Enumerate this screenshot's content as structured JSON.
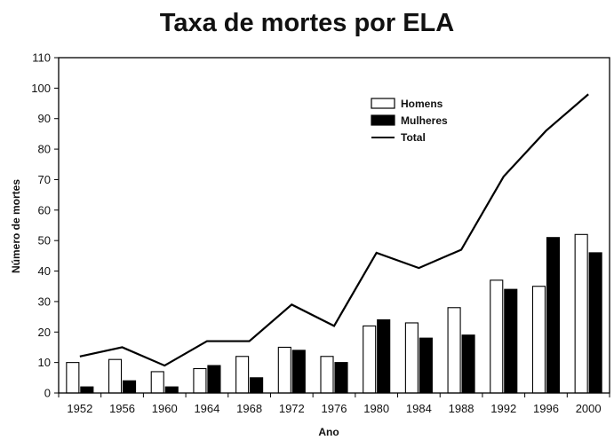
{
  "chart_data": {
    "type": "bar",
    "title": "Taxa de mortes por ELA",
    "xlabel": "Ano",
    "ylabel": "Número de mortes",
    "ylim": [
      0,
      110
    ],
    "yticks": [
      0,
      10,
      20,
      30,
      40,
      50,
      60,
      70,
      80,
      90,
      100,
      110
    ],
    "categories": [
      "1952",
      "1956",
      "1960",
      "1964",
      "1968",
      "1972",
      "1976",
      "1980",
      "1984",
      "1988",
      "1992",
      "1996",
      "2000"
    ],
    "series": [
      {
        "name": "Homens",
        "type": "bar",
        "color": "#ffffff",
        "values": [
          10,
          11,
          7,
          8,
          12,
          15,
          12,
          22,
          23,
          28,
          37,
          35,
          52
        ]
      },
      {
        "name": "Mulheres",
        "type": "bar",
        "color": "#000000",
        "values": [
          2,
          4,
          2,
          9,
          5,
          14,
          10,
          24,
          18,
          19,
          34,
          51,
          46
        ]
      },
      {
        "name": "Total",
        "type": "line",
        "color": "#000000",
        "values": [
          12,
          15,
          9,
          17,
          17,
          29,
          22,
          46,
          41,
          47,
          71,
          86,
          98
        ]
      }
    ],
    "legend_position": "top-right",
    "grid": false
  }
}
